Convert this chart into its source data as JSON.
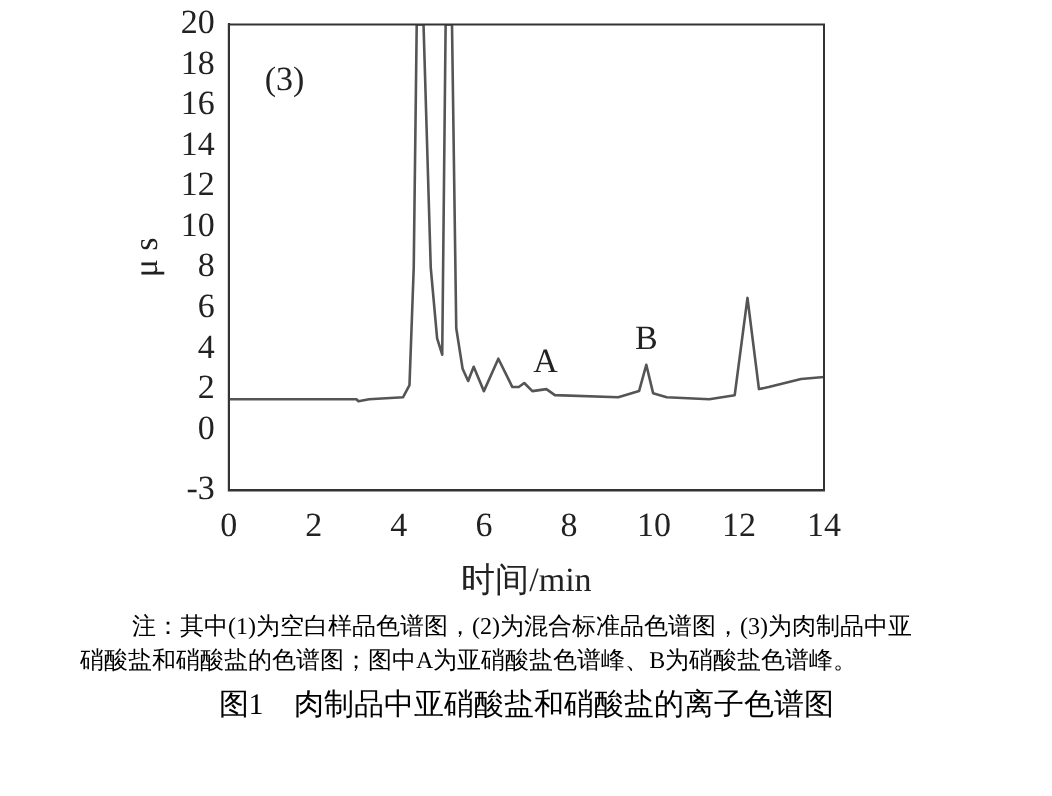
{
  "chart_data": {
    "type": "line",
    "title": "图1　肉制品中亚硝酸盐和硝酸盐的离子色谱图",
    "xlabel": "时间/min",
    "ylabel": "μ s",
    "x": [
      0,
      3.0,
      3.05,
      3.3,
      4.1,
      4.25,
      4.35,
      4.42,
      4.58,
      4.75,
      4.9,
      5.02,
      5.1,
      5.25,
      5.35,
      5.5,
      5.63,
      5.76,
      6.0,
      6.34,
      6.67,
      6.82,
      6.95,
      7.14,
      7.47,
      7.67,
      9.16,
      9.65,
      9.82,
      9.98,
      10.3,
      11.3,
      11.9,
      12.2,
      12.47,
      12.7,
      13.46,
      14
    ],
    "series": [
      {
        "color": "#555555",
        "values": [
          1.5,
          1.5,
          1.4,
          1.5,
          1.6,
          2.2,
          8,
          20,
          20,
          8,
          4.5,
          3.7,
          20,
          20,
          5,
          3,
          2.4,
          3.1,
          1.9,
          3.5,
          2.1,
          2.1,
          2.3,
          1.9,
          2.0,
          1.7,
          1.6,
          1.9,
          3.2,
          1.8,
          1.6,
          1.5,
          1.7,
          6.5,
          2.0,
          2.1,
          2.5,
          2.6
        ]
      }
    ],
    "xlim": [
      0,
      14
    ],
    "xticks": [
      0,
      2,
      4,
      6,
      8,
      10,
      12,
      14
    ],
    "ylim": [
      -3,
      20
    ],
    "yticks": [
      -3,
      0,
      2,
      4,
      6,
      8,
      10,
      12,
      14,
      16,
      18,
      20
    ],
    "grid": false,
    "legend": false,
    "marker": "none",
    "line_style": "solid",
    "annotations": [
      "(3)",
      {
        "text": "A",
        "x": 7.45,
        "y": 2.05
      },
      {
        "text": "B",
        "x": 9.82,
        "y": 3.2
      },
      "注：其中(1)为空白样品色谱图，(2)为混合标准品色谱图，(3)为肉制品中亚硝酸盐和硝酸盐的色谱图；图中A为亚硝酸盐色谱峰、B为硝酸盐色谱峰。"
    ]
  }
}
